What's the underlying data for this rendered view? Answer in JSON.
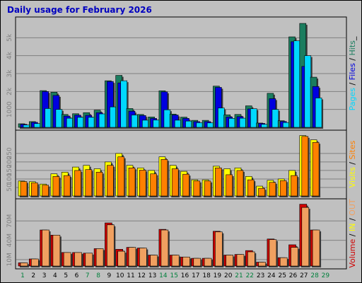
{
  "title": "Daily usage for February 2026",
  "colors": {
    "title": "#0000c0",
    "hits": "#1b7d5f",
    "files": "#0000e0",
    "pages": "#00d8ff",
    "visits": "#ffff00",
    "sites": "#ff8000",
    "volume": "#d00000",
    "in_out": "#f0a060",
    "weekday": "#000000",
    "weekend": "#00803c",
    "panel": "#c0c0c0",
    "shadow": "#404040"
  },
  "legends": {
    "top": [
      {
        "text": "Pages",
        "color": "#00d8ff"
      },
      {
        "text": " / ",
        "color": "#000000"
      },
      {
        "text": "Files",
        "color": "#0000e0"
      },
      {
        "text": " / ",
        "color": "#000000"
      },
      {
        "text": "Hits",
        "color": "#1b7d5f"
      },
      {
        "text": "_",
        "color": "#000000"
      }
    ],
    "middle": [
      {
        "text": "Visits",
        "color": "#ffff00"
      },
      {
        "text": " / ",
        "color": "#000000"
      },
      {
        "text": "Sites",
        "color": "#ff8000"
      }
    ],
    "bottom": [
      {
        "text": "Volume",
        "color": "#d00000"
      },
      {
        "text": " / ",
        "color": "#000000"
      },
      {
        "text": "IN",
        "color": "#ffff00"
      },
      {
        "text": " / ",
        "color": "#000000"
      },
      {
        "text": "OUT",
        "color": "#f0a060"
      }
    ]
  },
  "chart_data": {
    "type": "bar",
    "title": "Daily usage for February 2026",
    "days": [
      "1",
      "2",
      "3",
      "4",
      "5",
      "6",
      "7",
      "8",
      "9",
      "10",
      "11",
      "12",
      "13",
      "14",
      "15",
      "16",
      "17",
      "18",
      "19",
      "20",
      "21",
      "22",
      "23",
      "24",
      "25",
      "26",
      "27",
      "28",
      "29"
    ],
    "weekend_days": [
      "1",
      "7",
      "8",
      "14",
      "15",
      "21",
      "22",
      "28",
      "29"
    ],
    "panels": [
      {
        "name": "hits-files-pages",
        "ymax": 6000,
        "yticks": [
          {
            "value": 1000,
            "label": "1000"
          },
          {
            "value": 2000,
            "label": "2k"
          },
          {
            "value": 3000,
            "label": "3k"
          },
          {
            "value": 4000,
            "label": "4k"
          },
          {
            "value": 5000,
            "label": "5k"
          }
        ],
        "series": [
          {
            "name": "Hits",
            "color": "#1b7d5f",
            "values": [
              200,
              320,
              2050,
              1960,
              720,
              760,
              820,
              960,
              2600,
              2900,
              1050,
              720,
              580,
              2040,
              740,
              570,
              390,
              390,
              2300,
              700,
              720,
              1200,
              240,
              1900,
              370,
              5050,
              5800,
              2800,
              0
            ]
          },
          {
            "name": "Files",
            "color": "#0000e0",
            "values": [
              170,
              280,
              2000,
              1780,
              630,
              680,
              670,
              820,
              2560,
              2480,
              900,
              660,
              500,
              1980,
              690,
              500,
              320,
              320,
              2230,
              580,
              600,
              1030,
              220,
              1600,
              330,
              4780,
              3400,
              2280,
              0
            ]
          },
          {
            "name": "Pages",
            "color": "#00d8ff",
            "values": [
              130,
              210,
              1050,
              1000,
              510,
              560,
              560,
              750,
              1140,
              2600,
              690,
              400,
              410,
              980,
              400,
              350,
              260,
              250,
              1080,
              500,
              510,
              1040,
              170,
              1000,
              270,
              4830,
              4000,
              1640,
              0
            ]
          }
        ]
      },
      {
        "name": "visits-sites",
        "ymax": 370,
        "yticks": [
          {
            "value": 50,
            "label": "50"
          },
          {
            "value": 100,
            "label": "100"
          },
          {
            "value": 150,
            "label": "150"
          },
          {
            "value": 200,
            "label": "200"
          },
          {
            "value": 250,
            "label": "250"
          }
        ],
        "series": [
          {
            "name": "Visits",
            "color": "#ffff00",
            "values": [
              88,
              84,
              70,
              130,
              140,
              170,
              180,
              160,
              200,
              250,
              180,
              165,
              150,
              230,
              180,
              145,
              95,
              95,
              175,
              160,
              165,
              115,
              58,
              92,
              100,
              150,
              355,
              330,
              0
            ]
          },
          {
            "name": "Sites",
            "color": "#ff8000",
            "values": [
              85,
              77,
              64,
              115,
              120,
              150,
              155,
              140,
              180,
              230,
              165,
              152,
              130,
              215,
              160,
              128,
              88,
              88,
              165,
              125,
              150,
              95,
              45,
              80,
              90,
              120,
              350,
              315,
              0
            ]
          }
        ]
      },
      {
        "name": "volume",
        "ymax": 100,
        "yticks": [
          {
            "value": 10,
            "label": "10M"
          },
          {
            "value": 40,
            "label": "40M"
          },
          {
            "value": 70,
            "label": "70M"
          }
        ],
        "series": [
          {
            "name": "Volume",
            "color": "#d00000",
            "values": [
              5,
              11,
              56,
              48,
              21,
              21,
              20,
              27,
              67,
              26,
              29,
              28,
              17,
              57,
              17,
              14,
              12,
              12,
              54,
              17,
              18,
              24,
              6,
              42,
              13,
              33,
              96,
              56,
              0
            ]
          },
          {
            "name": "OUT",
            "color": "#f0a060",
            "values": [
              5,
              11,
              56,
              48,
              21,
              21,
              20,
              27,
              64,
              23,
              29,
              28,
              17,
              56,
              17,
              14,
              12,
              12,
              53,
              17,
              18,
              22,
              6,
              41,
              13,
              29,
              91,
              56,
              0
            ]
          }
        ]
      }
    ]
  }
}
